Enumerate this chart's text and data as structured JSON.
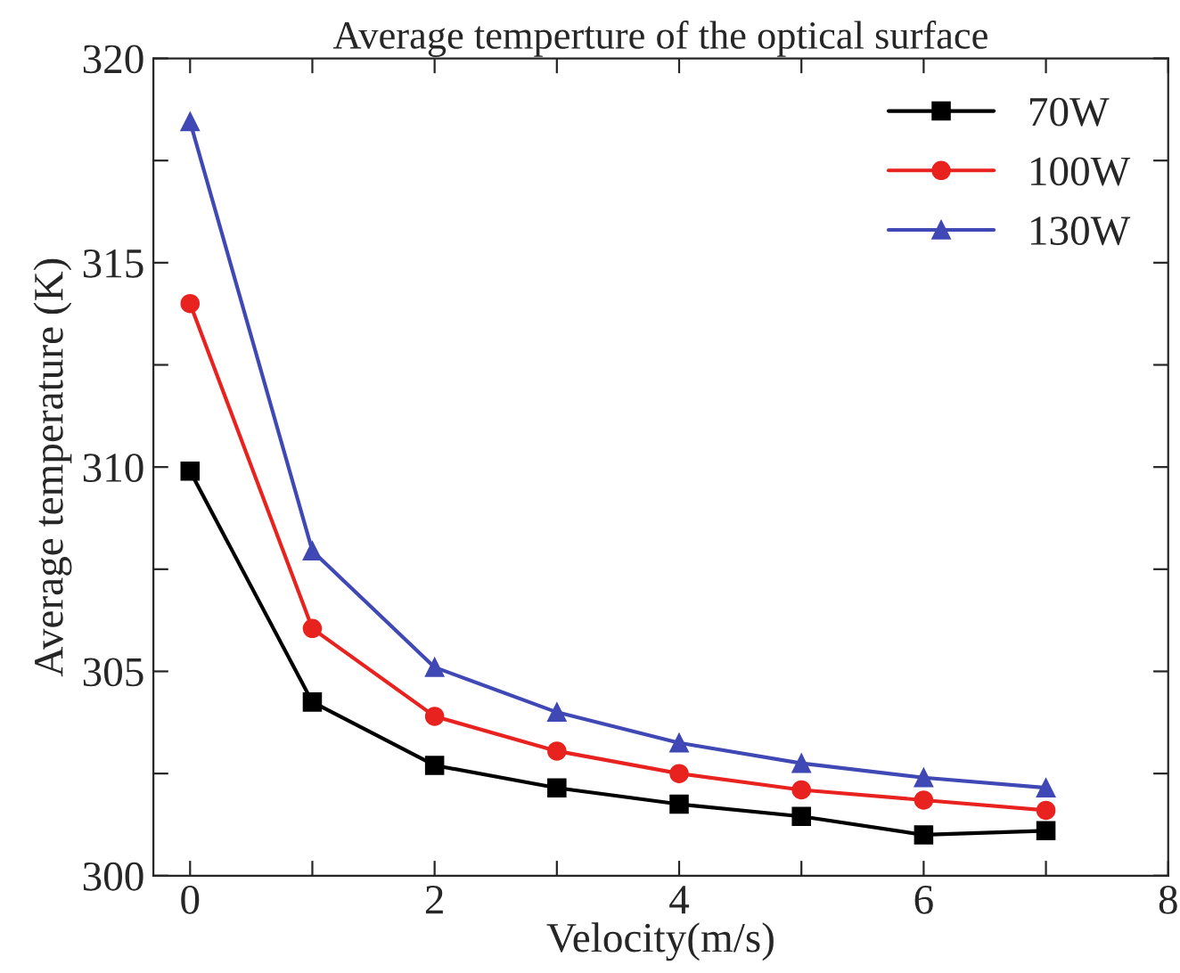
{
  "chart_data": {
    "type": "line",
    "title": "Average temperture of the optical surface",
    "xlabel": "Velocity(m/s)",
    "ylabel": "Average temperature (K)",
    "x": [
      0,
      1,
      2,
      3,
      4,
      5,
      6,
      7
    ],
    "series": [
      {
        "name": "70W",
        "color": "#000000",
        "marker": "square",
        "values": [
          309.9,
          304.25,
          302.7,
          302.15,
          301.75,
          301.45,
          301.0,
          301.1
        ]
      },
      {
        "name": "100W",
        "color": "#e8231f",
        "marker": "circle",
        "values": [
          314.0,
          306.05,
          303.9,
          303.05,
          302.5,
          302.1,
          301.85,
          301.6
        ]
      },
      {
        "name": "130W",
        "color": "#3f48b5",
        "marker": "triangle",
        "values": [
          318.45,
          307.95,
          305.1,
          304.0,
          303.25,
          302.75,
          302.4,
          302.15
        ]
      }
    ],
    "xlim": [
      -0.3,
      8
    ],
    "ylim": [
      300,
      320
    ],
    "xticks": [
      0,
      {
        "value": 1,
        "label": null
      },
      2,
      {
        "value": 3,
        "label": null
      },
      4,
      {
        "value": 5,
        "label": null
      },
      6,
      {
        "value": 7,
        "label": null
      },
      8
    ],
    "yticks": [
      300,
      {
        "value": 302.5,
        "label": null
      },
      305,
      {
        "value": 307.5,
        "label": null
      },
      310,
      {
        "value": 312.5,
        "label": null
      },
      315,
      {
        "value": 317.5,
        "label": null
      },
      320
    ],
    "grid": false,
    "legend": "top right",
    "line_style": "solid"
  }
}
